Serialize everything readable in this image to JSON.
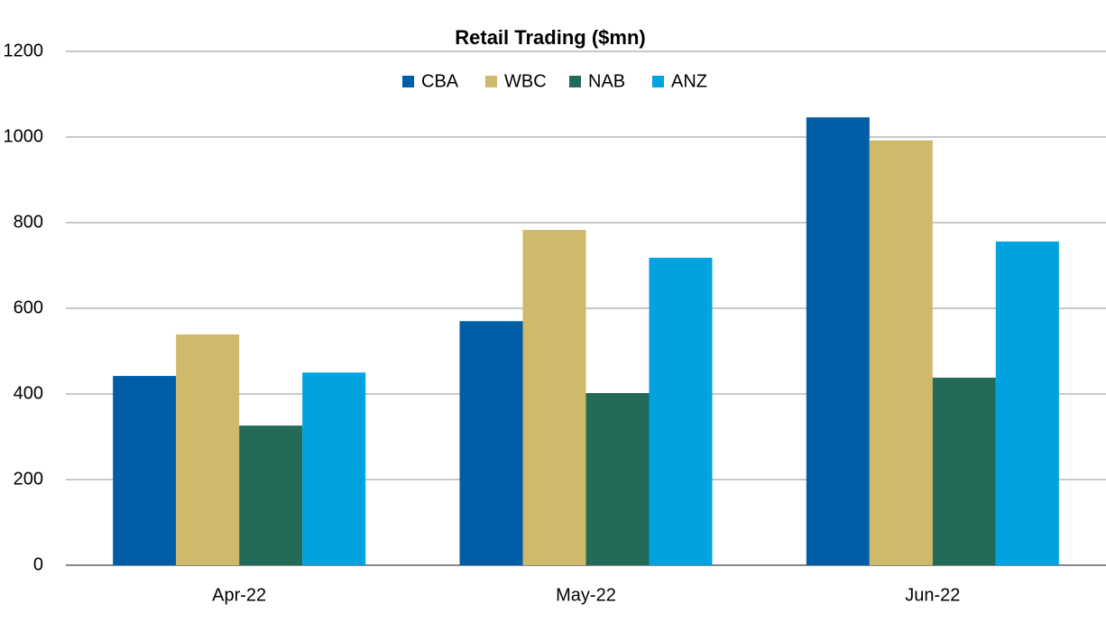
{
  "chart_data": {
    "type": "bar",
    "title": "Retail Trading ($mn)",
    "categories": [
      "Apr-22",
      "May-22",
      "Jun-22"
    ],
    "series": [
      {
        "name": "CBA",
        "color": "#005ea8",
        "values": [
          442,
          570,
          1046
        ]
      },
      {
        "name": "WBC",
        "color": "#cfb96a",
        "values": [
          539,
          783,
          992
        ]
      },
      {
        "name": "NAB",
        "color": "#216b58",
        "values": [
          326,
          402,
          438
        ]
      },
      {
        "name": "ANZ",
        "color": "#00a3e0",
        "values": [
          450,
          718,
          756
        ]
      }
    ],
    "ylim": [
      0,
      1200
    ],
    "yticks": [
      0,
      200,
      400,
      600,
      800,
      1000,
      1200
    ],
    "grid": true
  }
}
